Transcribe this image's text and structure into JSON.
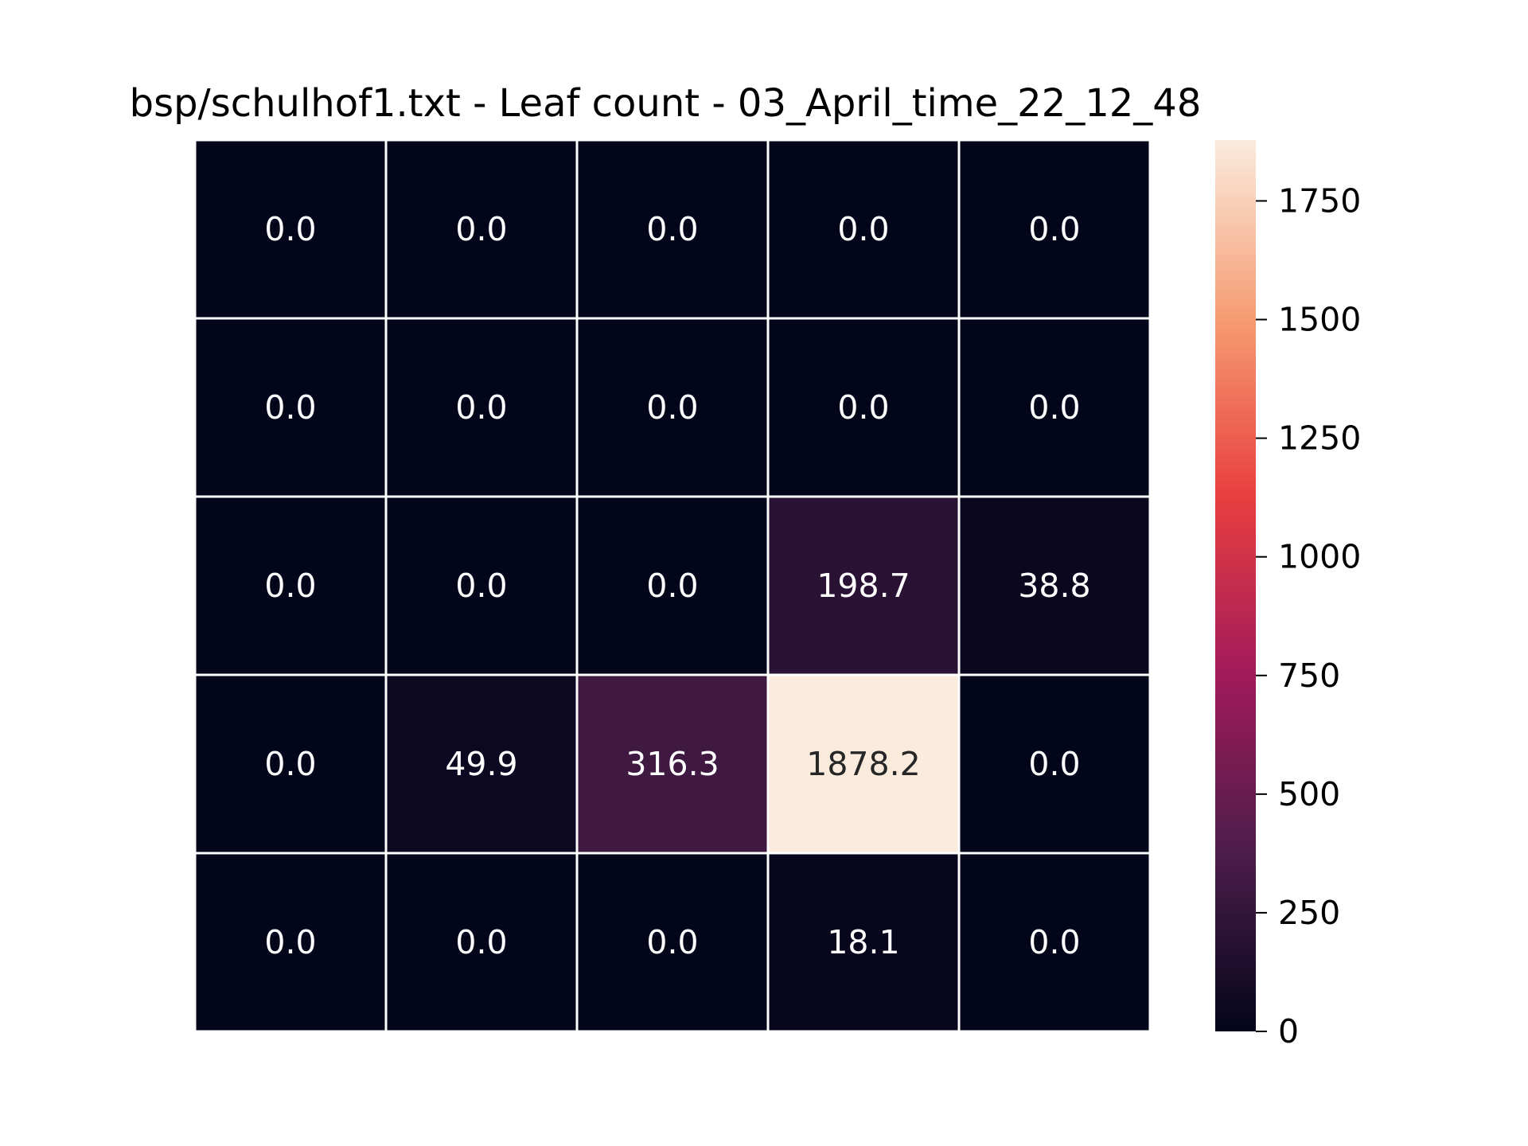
{
  "chart_data": {
    "type": "heatmap",
    "title": "bsp/schulhof1.txt - Leaf count - 03_April_time_22_12_48",
    "xlabel": "",
    "ylabel": "",
    "rows": 5,
    "cols": 5,
    "values": [
      [
        0.0,
        0.0,
        0.0,
        0.0,
        0.0
      ],
      [
        0.0,
        0.0,
        0.0,
        0.0,
        0.0
      ],
      [
        0.0,
        0.0,
        0.0,
        198.7,
        38.8
      ],
      [
        0.0,
        49.9,
        316.3,
        1878.2,
        0.0
      ],
      [
        0.0,
        0.0,
        0.0,
        18.1,
        0.0
      ]
    ],
    "cell_labels": [
      [
        "0.0",
        "0.0",
        "0.0",
        "0.0",
        "0.0"
      ],
      [
        "0.0",
        "0.0",
        "0.0",
        "0.0",
        "0.0"
      ],
      [
        "0.0",
        "0.0",
        "0.0",
        "198.7",
        "38.8"
      ],
      [
        "0.0",
        "49.9",
        "316.3",
        "1878.2",
        "0.0"
      ],
      [
        "0.0",
        "0.0",
        "0.0",
        "18.1",
        "0.0"
      ]
    ],
    "colorbar": {
      "min": 0,
      "max": 1878.2,
      "ticks": [
        0,
        250,
        500,
        750,
        1000,
        1250,
        1500,
        1750
      ],
      "tick_labels": [
        "0",
        "250",
        "500",
        "750",
        "1000",
        "1250",
        "1500",
        "1750"
      ]
    },
    "colormap": "rocket",
    "colormap_stops": [
      "#03051a",
      "#4c1d4b",
      "#a11a5b",
      "#e83f3f",
      "#f69c73",
      "#faebdd"
    ],
    "grid_line_color": "#ffffff",
    "annotation_colors": {
      "on_dark": "#ffffff",
      "on_light": "#262626"
    }
  }
}
